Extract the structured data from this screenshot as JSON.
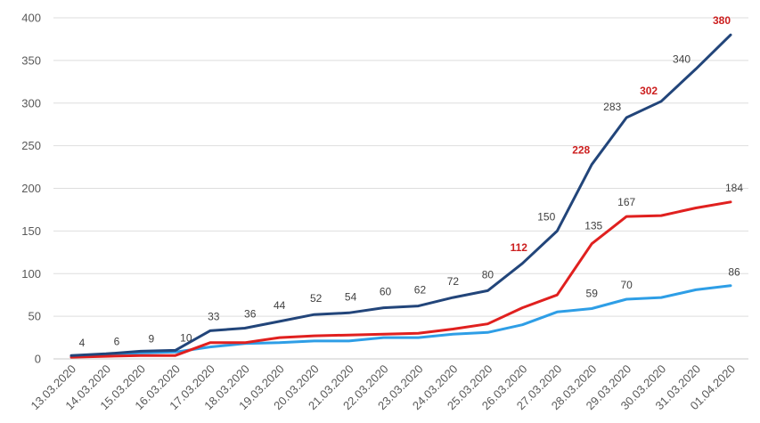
{
  "chart_data": {
    "type": "line",
    "title": "",
    "xlabel": "",
    "ylabel": "",
    "ylim": [
      0,
      400
    ],
    "yticks": [
      0,
      50,
      100,
      150,
      200,
      250,
      300,
      350,
      400
    ],
    "grid": true,
    "legend": "none",
    "categories": [
      "13.03.2020",
      "14.03.2020",
      "15.03.2020",
      "16.03.2020",
      "17.03.2020",
      "18.03.2020",
      "19.03.2020",
      "20.03.2020",
      "21.03.2020",
      "22.03.2020",
      "23.03.2020",
      "24.03.2020",
      "25.03.2020",
      "26.03.2020",
      "27.03.2020",
      "28.03.2020",
      "29.03.2020",
      "30.03.2020",
      "31.03.2020",
      "01.04.2020"
    ],
    "series": [
      {
        "color": "#22457a",
        "values": [
          4,
          6,
          9,
          10,
          33,
          36,
          44,
          52,
          54,
          60,
          62,
          72,
          80,
          112,
          150,
          228,
          283,
          302,
          340,
          380
        ],
        "labeled": [
          true,
          true,
          true,
          true,
          true,
          true,
          true,
          true,
          true,
          true,
          true,
          true,
          true,
          true,
          true,
          true,
          true,
          true,
          true,
          true
        ],
        "highlight": [
          false,
          false,
          false,
          false,
          false,
          false,
          false,
          false,
          false,
          false,
          false,
          false,
          false,
          true,
          false,
          true,
          false,
          true,
          false,
          true
        ]
      },
      {
        "color": "#e0201f",
        "values": [
          2,
          3,
          4,
          4,
          19,
          19,
          25,
          27,
          28,
          29,
          30,
          35,
          41,
          60,
          75,
          135,
          167,
          168,
          177,
          184
        ],
        "labeled": [
          false,
          false,
          false,
          false,
          false,
          false,
          false,
          false,
          false,
          false,
          false,
          false,
          false,
          false,
          false,
          true,
          true,
          false,
          false,
          true
        ],
        "highlight": [
          false,
          false,
          false,
          false,
          false,
          false,
          false,
          false,
          false,
          false,
          false,
          false,
          false,
          false,
          false,
          false,
          false,
          false,
          false,
          false
        ]
      },
      {
        "color": "#2e9ee6",
        "values": [
          3,
          5,
          7,
          8,
          14,
          18,
          19,
          21,
          21,
          25,
          25,
          29,
          31,
          40,
          55,
          59,
          70,
          72,
          81,
          86
        ],
        "labeled": [
          false,
          false,
          false,
          false,
          false,
          false,
          false,
          false,
          false,
          false,
          false,
          false,
          false,
          false,
          false,
          true,
          true,
          false,
          false,
          true
        ],
        "highlight": [
          false,
          false,
          false,
          false,
          false,
          false,
          false,
          false,
          false,
          false,
          false,
          false,
          false,
          false,
          false,
          false,
          false,
          false,
          false,
          false
        ]
      }
    ]
  }
}
